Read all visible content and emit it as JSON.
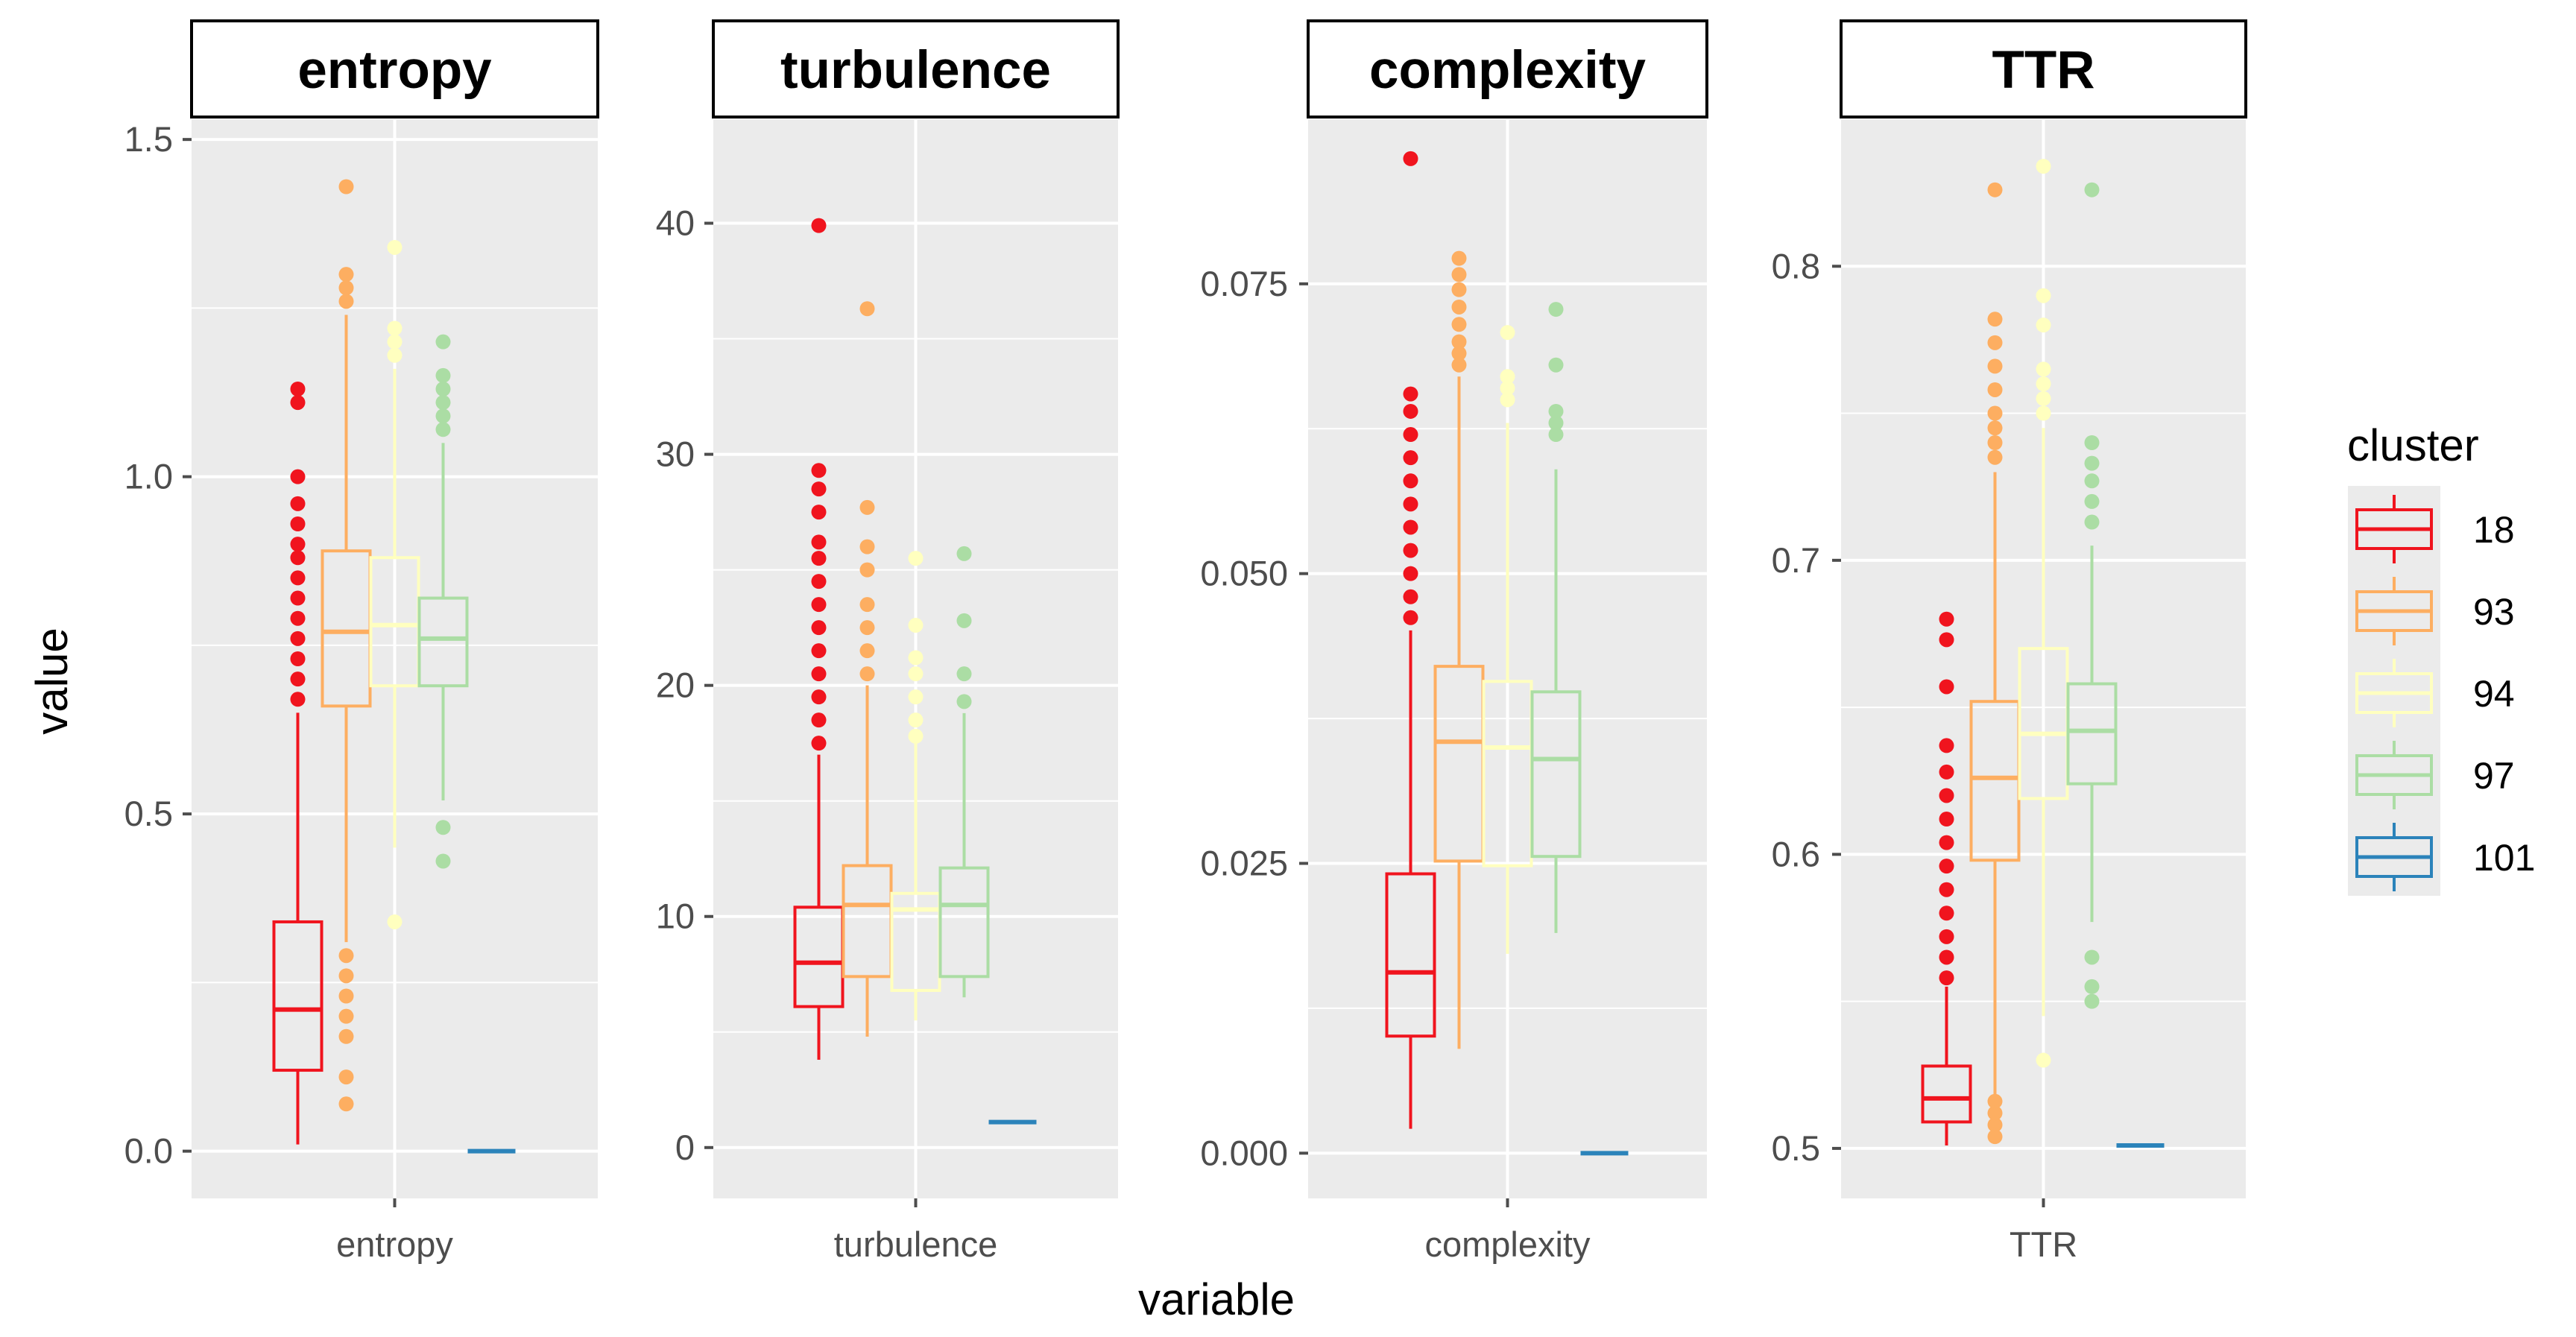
{
  "chart_data": {
    "type": "boxplot",
    "facets": [
      {
        "strip": "entropy",
        "x_tick": "entropy",
        "ylim": [
          -0.07,
          1.53
        ],
        "y_ticks": [
          0.0,
          0.5,
          1.0,
          1.5
        ],
        "y_tick_labels": [
          "0.0",
          "0.5",
          "1.0",
          "1.5"
        ],
        "boxes": [
          {
            "cluster": "18",
            "q1": 0.12,
            "median": 0.21,
            "q3": 0.34,
            "wlo": 0.01,
            "whi": 0.65,
            "outliers": [
              0.67,
              0.7,
              0.73,
              0.76,
              0.79,
              0.82,
              0.85,
              0.88,
              0.9,
              0.93,
              0.96,
              1.0,
              1.11,
              1.13
            ]
          },
          {
            "cluster": "93",
            "q1": 0.66,
            "median": 0.77,
            "q3": 0.89,
            "wlo": 0.31,
            "whi": 1.24,
            "outliers": [
              0.07,
              0.11,
              0.17,
              0.2,
              0.23,
              0.26,
              0.29,
              1.26,
              1.28,
              1.3,
              1.43
            ]
          },
          {
            "cluster": "94",
            "q1": 0.69,
            "median": 0.78,
            "q3": 0.88,
            "wlo": 0.45,
            "whi": 1.16,
            "outliers": [
              0.34,
              1.18,
              1.2,
              1.22,
              1.34
            ]
          },
          {
            "cluster": "97",
            "q1": 0.69,
            "median": 0.76,
            "q3": 0.82,
            "wlo": 0.52,
            "whi": 1.05,
            "outliers": [
              0.43,
              0.48,
              1.07,
              1.09,
              1.11,
              1.13,
              1.15,
              1.2
            ]
          },
          {
            "cluster": "101",
            "q1": 0.0,
            "median": 0.0,
            "q3": 0.0,
            "wlo": 0.0,
            "whi": 0.0,
            "outliers": []
          }
        ]
      },
      {
        "strip": "turbulence",
        "x_tick": "turbulence",
        "ylim": [
          -2.2,
          44.5
        ],
        "y_ticks": [
          0,
          10,
          20,
          30,
          40
        ],
        "y_tick_labels": [
          "0",
          "10",
          "20",
          "30",
          "40"
        ],
        "boxes": [
          {
            "cluster": "18",
            "q1": 6.1,
            "median": 8.0,
            "q3": 10.4,
            "wlo": 3.8,
            "whi": 17.0,
            "outliers": [
              17.5,
              18.5,
              19.5,
              20.5,
              21.5,
              22.5,
              23.5,
              24.5,
              25.5,
              26.2,
              27.5,
              28.5,
              29.3,
              39.9
            ]
          },
          {
            "cluster": "93",
            "q1": 7.4,
            "median": 10.5,
            "q3": 12.2,
            "wlo": 4.8,
            "whi": 20.0,
            "outliers": [
              20.5,
              21.5,
              22.5,
              23.5,
              25.0,
              26.0,
              27.7,
              36.3
            ]
          },
          {
            "cluster": "94",
            "q1": 6.8,
            "median": 10.3,
            "q3": 11.0,
            "wlo": 5.5,
            "whi": 17.5,
            "outliers": [
              17.8,
              18.5,
              19.5,
              20.5,
              21.2,
              22.6,
              25.5
            ]
          },
          {
            "cluster": "97",
            "q1": 7.4,
            "median": 10.5,
            "q3": 12.1,
            "wlo": 6.5,
            "whi": 18.8,
            "outliers": [
              19.3,
              20.5,
              22.8,
              25.7
            ]
          },
          {
            "cluster": "101",
            "q1": 1.1,
            "median": 1.1,
            "q3": 1.1,
            "wlo": 1.1,
            "whi": 1.1,
            "outliers": []
          }
        ]
      },
      {
        "strip": "complexity",
        "x_tick": "complexity",
        "ylim": [
          -0.0039,
          0.0892
        ],
        "y_ticks": [
          0.0,
          0.025,
          0.05,
          0.075
        ],
        "y_tick_labels": [
          "0.000",
          "0.025",
          "0.050",
          "0.075"
        ],
        "boxes": [
          {
            "cluster": "18",
            "q1": 0.0101,
            "median": 0.0156,
            "q3": 0.0241,
            "wlo": 0.0021,
            "whi": 0.0451,
            "outliers": [
              0.0462,
              0.048,
              0.05,
              0.052,
              0.054,
              0.056,
              0.058,
              0.06,
              0.062,
              0.064,
              0.0655,
              0.0858
            ]
          },
          {
            "cluster": "93",
            "q1": 0.0252,
            "median": 0.0355,
            "q3": 0.042,
            "wlo": 0.009,
            "whi": 0.067,
            "outliers": [
              0.068,
              0.069,
              0.07,
              0.0715,
              0.073,
              0.0745,
              0.0758,
              0.0772
            ]
          },
          {
            "cluster": "94",
            "q1": 0.0248,
            "median": 0.035,
            "q3": 0.0407,
            "wlo": 0.0172,
            "whi": 0.063,
            "outliers": [
              0.065,
              0.066,
              0.067,
              0.0708
            ]
          },
          {
            "cluster": "97",
            "q1": 0.0256,
            "median": 0.034,
            "q3": 0.0398,
            "wlo": 0.019,
            "whi": 0.059,
            "outliers": [
              0.062,
              0.063,
              0.064,
              0.068,
              0.0728
            ]
          },
          {
            "cluster": "101",
            "q1": 0.0,
            "median": 0.0,
            "q3": 0.0,
            "wlo": 0.0,
            "whi": 0.0,
            "outliers": []
          }
        ]
      },
      {
        "strip": "TTR",
        "x_tick": "TTR",
        "ylim": [
          0.483,
          0.85
        ],
        "y_ticks": [
          0.5,
          0.6,
          0.7,
          0.8
        ],
        "y_tick_labels": [
          "0.5",
          "0.6",
          "0.7",
          "0.8"
        ],
        "boxes": [
          {
            "cluster": "18",
            "q1": 0.509,
            "median": 0.517,
            "q3": 0.528,
            "wlo": 0.501,
            "whi": 0.555,
            "outliers": [
              0.558,
              0.565,
              0.572,
              0.58,
              0.588,
              0.596,
              0.604,
              0.612,
              0.62,
              0.628,
              0.637,
              0.657,
              0.673,
              0.68
            ]
          },
          {
            "cluster": "93",
            "q1": 0.598,
            "median": 0.626,
            "q3": 0.652,
            "wlo": 0.518,
            "whi": 0.73,
            "outliers": [
              0.504,
              0.508,
              0.512,
              0.516,
              0.735,
              0.74,
              0.745,
              0.75,
              0.758,
              0.766,
              0.774,
              0.782,
              0.826
            ]
          },
          {
            "cluster": "94",
            "q1": 0.619,
            "median": 0.641,
            "q3": 0.67,
            "wlo": 0.545,
            "whi": 0.745,
            "outliers": [
              0.53,
              0.75,
              0.755,
              0.76,
              0.765,
              0.78,
              0.79,
              0.834
            ]
          },
          {
            "cluster": "97",
            "q1": 0.624,
            "median": 0.642,
            "q3": 0.658,
            "wlo": 0.577,
            "whi": 0.705,
            "outliers": [
              0.55,
              0.555,
              0.565,
              0.713,
              0.72,
              0.727,
              0.733,
              0.74,
              0.826
            ]
          },
          {
            "cluster": "101",
            "q1": 0.501,
            "median": 0.501,
            "q3": 0.501,
            "wlo": 0.501,
            "whi": 0.501,
            "outliers": []
          }
        ]
      }
    ],
    "xlabel": "variable",
    "ylabel": "value",
    "legend": {
      "title": "cluster",
      "position": "right",
      "entries": [
        {
          "label": "18",
          "color": "#f0141e"
        },
        {
          "label": "93",
          "color": "#fdae61"
        },
        {
          "label": "94",
          "color": "#ffffbf"
        },
        {
          "label": "97",
          "color": "#abdda4"
        },
        {
          "label": "101",
          "color": "#2b83ba"
        }
      ]
    },
    "colors": {
      "panel_bg": "#ebebeb",
      "grid": "#ffffff",
      "tick": "#4d4d4d",
      "strip_border": "#000000"
    }
  }
}
